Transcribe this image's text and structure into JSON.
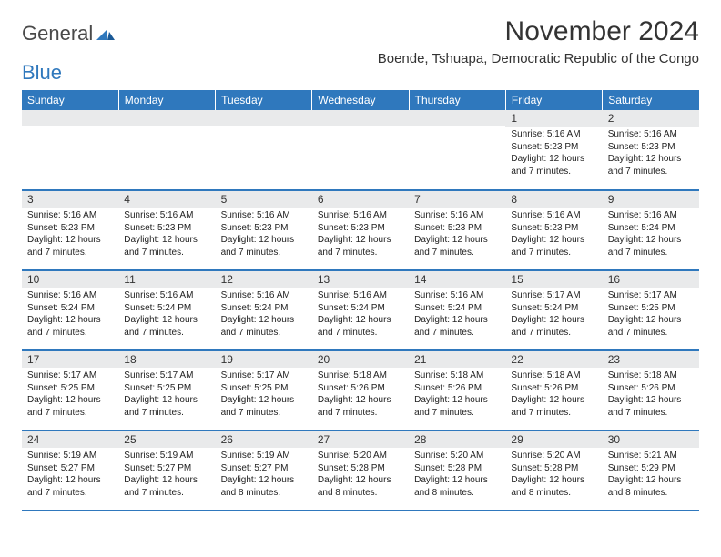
{
  "brand": {
    "word1": "General",
    "word2": "Blue"
  },
  "title": "November 2024",
  "location": "Boende, Tshuapa, Democratic Republic of the Congo",
  "colors": {
    "header_bg": "#2f78bd",
    "header_fg": "#ffffff",
    "daynum_bg": "#e9eaeb",
    "rule": "#2f78bd",
    "page_bg": "#ffffff"
  },
  "dow": [
    "Sunday",
    "Monday",
    "Tuesday",
    "Wednesday",
    "Thursday",
    "Friday",
    "Saturday"
  ],
  "weeks": [
    [
      {
        "n": "",
        "lines": []
      },
      {
        "n": "",
        "lines": []
      },
      {
        "n": "",
        "lines": []
      },
      {
        "n": "",
        "lines": []
      },
      {
        "n": "",
        "lines": []
      },
      {
        "n": "1",
        "lines": [
          "Sunrise: 5:16 AM",
          "Sunset: 5:23 PM",
          "Daylight: 12 hours and 7 minutes."
        ]
      },
      {
        "n": "2",
        "lines": [
          "Sunrise: 5:16 AM",
          "Sunset: 5:23 PM",
          "Daylight: 12 hours and 7 minutes."
        ]
      }
    ],
    [
      {
        "n": "3",
        "lines": [
          "Sunrise: 5:16 AM",
          "Sunset: 5:23 PM",
          "Daylight: 12 hours and 7 minutes."
        ]
      },
      {
        "n": "4",
        "lines": [
          "Sunrise: 5:16 AM",
          "Sunset: 5:23 PM",
          "Daylight: 12 hours and 7 minutes."
        ]
      },
      {
        "n": "5",
        "lines": [
          "Sunrise: 5:16 AM",
          "Sunset: 5:23 PM",
          "Daylight: 12 hours and 7 minutes."
        ]
      },
      {
        "n": "6",
        "lines": [
          "Sunrise: 5:16 AM",
          "Sunset: 5:23 PM",
          "Daylight: 12 hours and 7 minutes."
        ]
      },
      {
        "n": "7",
        "lines": [
          "Sunrise: 5:16 AM",
          "Sunset: 5:23 PM",
          "Daylight: 12 hours and 7 minutes."
        ]
      },
      {
        "n": "8",
        "lines": [
          "Sunrise: 5:16 AM",
          "Sunset: 5:23 PM",
          "Daylight: 12 hours and 7 minutes."
        ]
      },
      {
        "n": "9",
        "lines": [
          "Sunrise: 5:16 AM",
          "Sunset: 5:24 PM",
          "Daylight: 12 hours and 7 minutes."
        ]
      }
    ],
    [
      {
        "n": "10",
        "lines": [
          "Sunrise: 5:16 AM",
          "Sunset: 5:24 PM",
          "Daylight: 12 hours and 7 minutes."
        ]
      },
      {
        "n": "11",
        "lines": [
          "Sunrise: 5:16 AM",
          "Sunset: 5:24 PM",
          "Daylight: 12 hours and 7 minutes."
        ]
      },
      {
        "n": "12",
        "lines": [
          "Sunrise: 5:16 AM",
          "Sunset: 5:24 PM",
          "Daylight: 12 hours and 7 minutes."
        ]
      },
      {
        "n": "13",
        "lines": [
          "Sunrise: 5:16 AM",
          "Sunset: 5:24 PM",
          "Daylight: 12 hours and 7 minutes."
        ]
      },
      {
        "n": "14",
        "lines": [
          "Sunrise: 5:16 AM",
          "Sunset: 5:24 PM",
          "Daylight: 12 hours and 7 minutes."
        ]
      },
      {
        "n": "15",
        "lines": [
          "Sunrise: 5:17 AM",
          "Sunset: 5:24 PM",
          "Daylight: 12 hours and 7 minutes."
        ]
      },
      {
        "n": "16",
        "lines": [
          "Sunrise: 5:17 AM",
          "Sunset: 5:25 PM",
          "Daylight: 12 hours and 7 minutes."
        ]
      }
    ],
    [
      {
        "n": "17",
        "lines": [
          "Sunrise: 5:17 AM",
          "Sunset: 5:25 PM",
          "Daylight: 12 hours and 7 minutes."
        ]
      },
      {
        "n": "18",
        "lines": [
          "Sunrise: 5:17 AM",
          "Sunset: 5:25 PM",
          "Daylight: 12 hours and 7 minutes."
        ]
      },
      {
        "n": "19",
        "lines": [
          "Sunrise: 5:17 AM",
          "Sunset: 5:25 PM",
          "Daylight: 12 hours and 7 minutes."
        ]
      },
      {
        "n": "20",
        "lines": [
          "Sunrise: 5:18 AM",
          "Sunset: 5:26 PM",
          "Daylight: 12 hours and 7 minutes."
        ]
      },
      {
        "n": "21",
        "lines": [
          "Sunrise: 5:18 AM",
          "Sunset: 5:26 PM",
          "Daylight: 12 hours and 7 minutes."
        ]
      },
      {
        "n": "22",
        "lines": [
          "Sunrise: 5:18 AM",
          "Sunset: 5:26 PM",
          "Daylight: 12 hours and 7 minutes."
        ]
      },
      {
        "n": "23",
        "lines": [
          "Sunrise: 5:18 AM",
          "Sunset: 5:26 PM",
          "Daylight: 12 hours and 7 minutes."
        ]
      }
    ],
    [
      {
        "n": "24",
        "lines": [
          "Sunrise: 5:19 AM",
          "Sunset: 5:27 PM",
          "Daylight: 12 hours and 7 minutes."
        ]
      },
      {
        "n": "25",
        "lines": [
          "Sunrise: 5:19 AM",
          "Sunset: 5:27 PM",
          "Daylight: 12 hours and 7 minutes."
        ]
      },
      {
        "n": "26",
        "lines": [
          "Sunrise: 5:19 AM",
          "Sunset: 5:27 PM",
          "Daylight: 12 hours and 8 minutes."
        ]
      },
      {
        "n": "27",
        "lines": [
          "Sunrise: 5:20 AM",
          "Sunset: 5:28 PM",
          "Daylight: 12 hours and 8 minutes."
        ]
      },
      {
        "n": "28",
        "lines": [
          "Sunrise: 5:20 AM",
          "Sunset: 5:28 PM",
          "Daylight: 12 hours and 8 minutes."
        ]
      },
      {
        "n": "29",
        "lines": [
          "Sunrise: 5:20 AM",
          "Sunset: 5:28 PM",
          "Daylight: 12 hours and 8 minutes."
        ]
      },
      {
        "n": "30",
        "lines": [
          "Sunrise: 5:21 AM",
          "Sunset: 5:29 PM",
          "Daylight: 12 hours and 8 minutes."
        ]
      }
    ]
  ]
}
